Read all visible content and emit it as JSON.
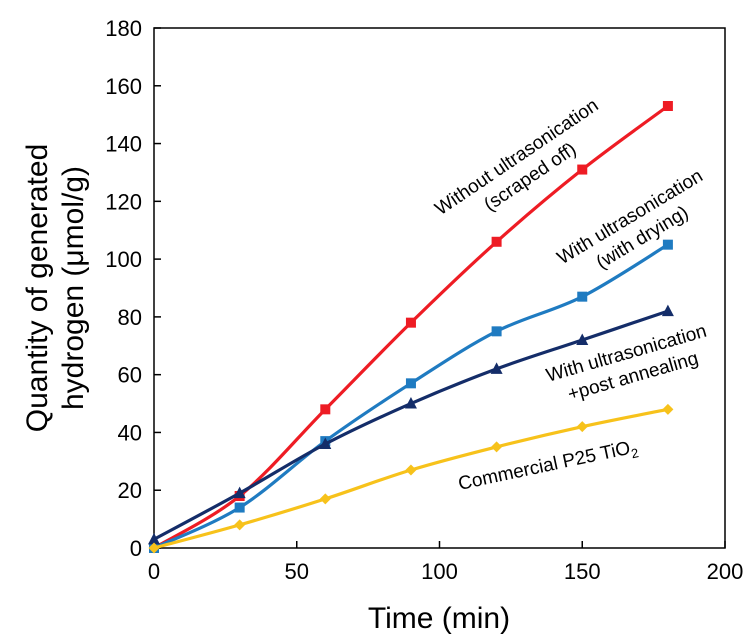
{
  "chart_data": {
    "type": "line",
    "xlabel": "Time (min)",
    "ylabel_lines": [
      "Quantity of generated",
      "hydrogen (μmol/g)"
    ],
    "xlim": [
      0,
      200
    ],
    "ylim": [
      0,
      180
    ],
    "x_ticks": [
      "0",
      "50",
      "100",
      "150",
      "200"
    ],
    "y_ticks": [
      "0",
      "20",
      "40",
      "60",
      "80",
      "100",
      "120",
      "140",
      "160",
      "180"
    ],
    "grid": false,
    "legend": "none (inline annotations)",
    "x": [
      0,
      30,
      60,
      90,
      120,
      150,
      180
    ],
    "series": [
      {
        "key": "without_ultrasonication",
        "color": "#ee1c24",
        "marker": "square",
        "values": [
          0,
          18,
          48,
          78,
          106,
          131,
          153
        ]
      },
      {
        "key": "with_ultrasonication_drying",
        "color": "#1f7bc1",
        "marker": "square",
        "values": [
          0,
          14,
          37,
          57,
          75,
          87,
          105
        ]
      },
      {
        "key": "with_ultrasonication_annealing",
        "color": "#142d69",
        "marker": "triangle",
        "values": [
          3,
          19,
          36,
          50,
          62,
          72,
          82
        ]
      },
      {
        "key": "commercial_p25",
        "color": "#f7c21b",
        "marker": "diamond",
        "values": [
          0,
          8,
          17,
          27,
          35,
          42,
          48
        ]
      }
    ],
    "annotations": [
      {
        "series": "without_ultrasonication",
        "lines": [
          "Without ultrasonication",
          "(scraped off)"
        ]
      },
      {
        "series": "with_ultrasonication_drying",
        "lines": [
          "With ultrasonication",
          "(with drying)"
        ]
      },
      {
        "series": "with_ultrasonication_annealing",
        "lines": [
          "With ultrasonication",
          "+post annealing"
        ]
      },
      {
        "series": "commercial_p25",
        "text_main": "Commercial P25 TiO",
        "text_sub": "2"
      }
    ]
  }
}
